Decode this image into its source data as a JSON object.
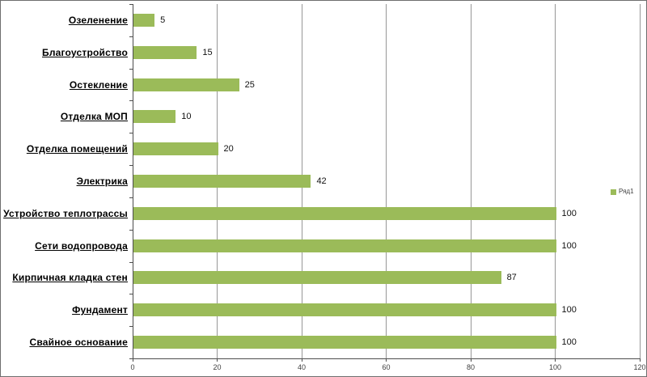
{
  "window": {
    "background": "#ffffff",
    "border_color": "#6e6e6e"
  },
  "chart_data": {
    "type": "bar",
    "orientation": "horizontal",
    "title": "",
    "categories": [
      "Озеленение",
      "Благоустройство",
      "Остекление",
      "Отделка МОП",
      "Отделка помещений",
      "Электрика",
      "Устройство теплотрассы",
      "Сети водопровода",
      "Кирпичная кладка стен",
      "Фундамент",
      "Свайное основание"
    ],
    "values": [
      5,
      15,
      25,
      10,
      20,
      42,
      100,
      100,
      87,
      100,
      100
    ],
    "series": [
      {
        "name": "Ряд1",
        "values": [
          5,
          15,
          25,
          10,
          20,
          42,
          100,
          100,
          87,
          100,
          100
        ]
      }
    ],
    "series_name": "Ряд1",
    "xlabel": "",
    "ylabel": "",
    "xlim": [
      0,
      120
    ],
    "x_ticks": [
      0,
      20,
      40,
      60,
      80,
      100,
      120
    ],
    "grid": "vertical",
    "data_labels": true,
    "legend_position": "right",
    "bar_color": "#9bbb59",
    "gridline_color": "#979797",
    "axis_color": "#4d4d4d",
    "text_color": "#000000"
  },
  "legend": {
    "label": "Ряд1",
    "swatch_color": "#9bbb59"
  }
}
